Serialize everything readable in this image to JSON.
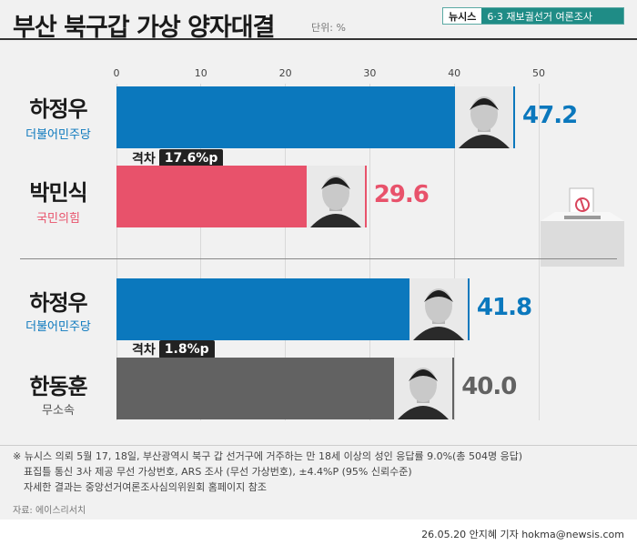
{
  "header": {
    "title": "부산 북구갑 가상 양자대결",
    "unit": "단위: %",
    "brand_name": "뉴시스",
    "brand_tag": "6·3 재보궐선거 여론조사"
  },
  "axis": {
    "ticks": [
      "0",
      "10",
      "20",
      "30",
      "40",
      "50"
    ]
  },
  "chart_data": [
    {
      "type": "bar",
      "orientation": "horizontal",
      "xlim": [
        0,
        50
      ],
      "categories": [
        "하정우",
        "박민식"
      ],
      "parties": [
        "더불어민주당",
        "국민의힘"
      ],
      "values": [
        47.2,
        29.6
      ],
      "value_labels": [
        "47.2",
        "29.6"
      ],
      "colors": [
        "#0b78bd",
        "#e8526b"
      ],
      "gap_label": "격차",
      "gap_value": "17.6%p"
    },
    {
      "type": "bar",
      "orientation": "horizontal",
      "xlim": [
        0,
        50
      ],
      "categories": [
        "하정우",
        "한동훈"
      ],
      "parties": [
        "더불어민주당",
        "무소속"
      ],
      "values": [
        41.8,
        40.0
      ],
      "value_labels": [
        "41.8",
        "40.0"
      ],
      "colors": [
        "#0b78bd",
        "#626262"
      ],
      "gap_label": "격차",
      "gap_value": "1.8%p"
    }
  ],
  "party_colors": {
    "더불어민주당": "#0b78bd",
    "국민의힘": "#e8526b",
    "무소속": "#555555"
  },
  "notes": [
    "※ 뉴시스 의뢰 5월 17, 18일, 부산광역시 북구 갑 선거구에 거주하는 만 18세 이상의 성인 응답률 9.0%(총 504명 응답)",
    "표집틀 통신 3사 제공 무선 가상번호, ARS 조사 (무선 가상번호), ±4.4%P (95% 신뢰수준)",
    "자세한 결과는 중앙선거여론조사심의위원회 홈페이지 참조"
  ],
  "source": "자료: 에이스리서치",
  "footer": "26.05.20 안지혜 기자 hokma@newsis.com"
}
